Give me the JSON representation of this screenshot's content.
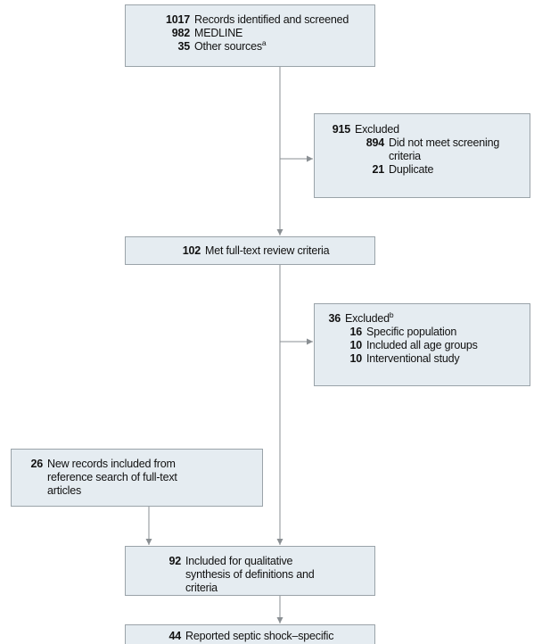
{
  "nodes": [
    {
      "items": [
        {
          "count": 1017,
          "label": "Records identified and screened"
        },
        {
          "count": 982,
          "label": "MEDLINE"
        },
        {
          "count": 35,
          "label": "Other sources",
          "sup": "a"
        }
      ]
    },
    {
      "items": [
        {
          "count": 915,
          "label": "Excluded"
        },
        {
          "count": 894,
          "label": "Did not meet screening criteria"
        },
        {
          "count": 21,
          "label": "Duplicate"
        }
      ]
    },
    {
      "items": [
        {
          "count": 102,
          "label": "Met full-text review criteria"
        }
      ]
    },
    {
      "items": [
        {
          "count": 36,
          "label": "Excluded",
          "sup": "b"
        },
        {
          "count": 16,
          "label": "Specific population"
        },
        {
          "count": 10,
          "label": "Included all age groups"
        },
        {
          "count": 10,
          "label": "Interventional study"
        }
      ]
    },
    {
      "items": [
        {
          "count": 26,
          "label": "New records included from reference search of full-text articles"
        }
      ]
    },
    {
      "items": [
        {
          "count": 92,
          "label": "Included for qualitative synthesis of definitions and criteria"
        }
      ]
    },
    {
      "items": [
        {
          "count": 44,
          "label": "Reported septic shock–specific mortality for quantitative synthesis",
          "sup": "c"
        }
      ]
    }
  ]
}
